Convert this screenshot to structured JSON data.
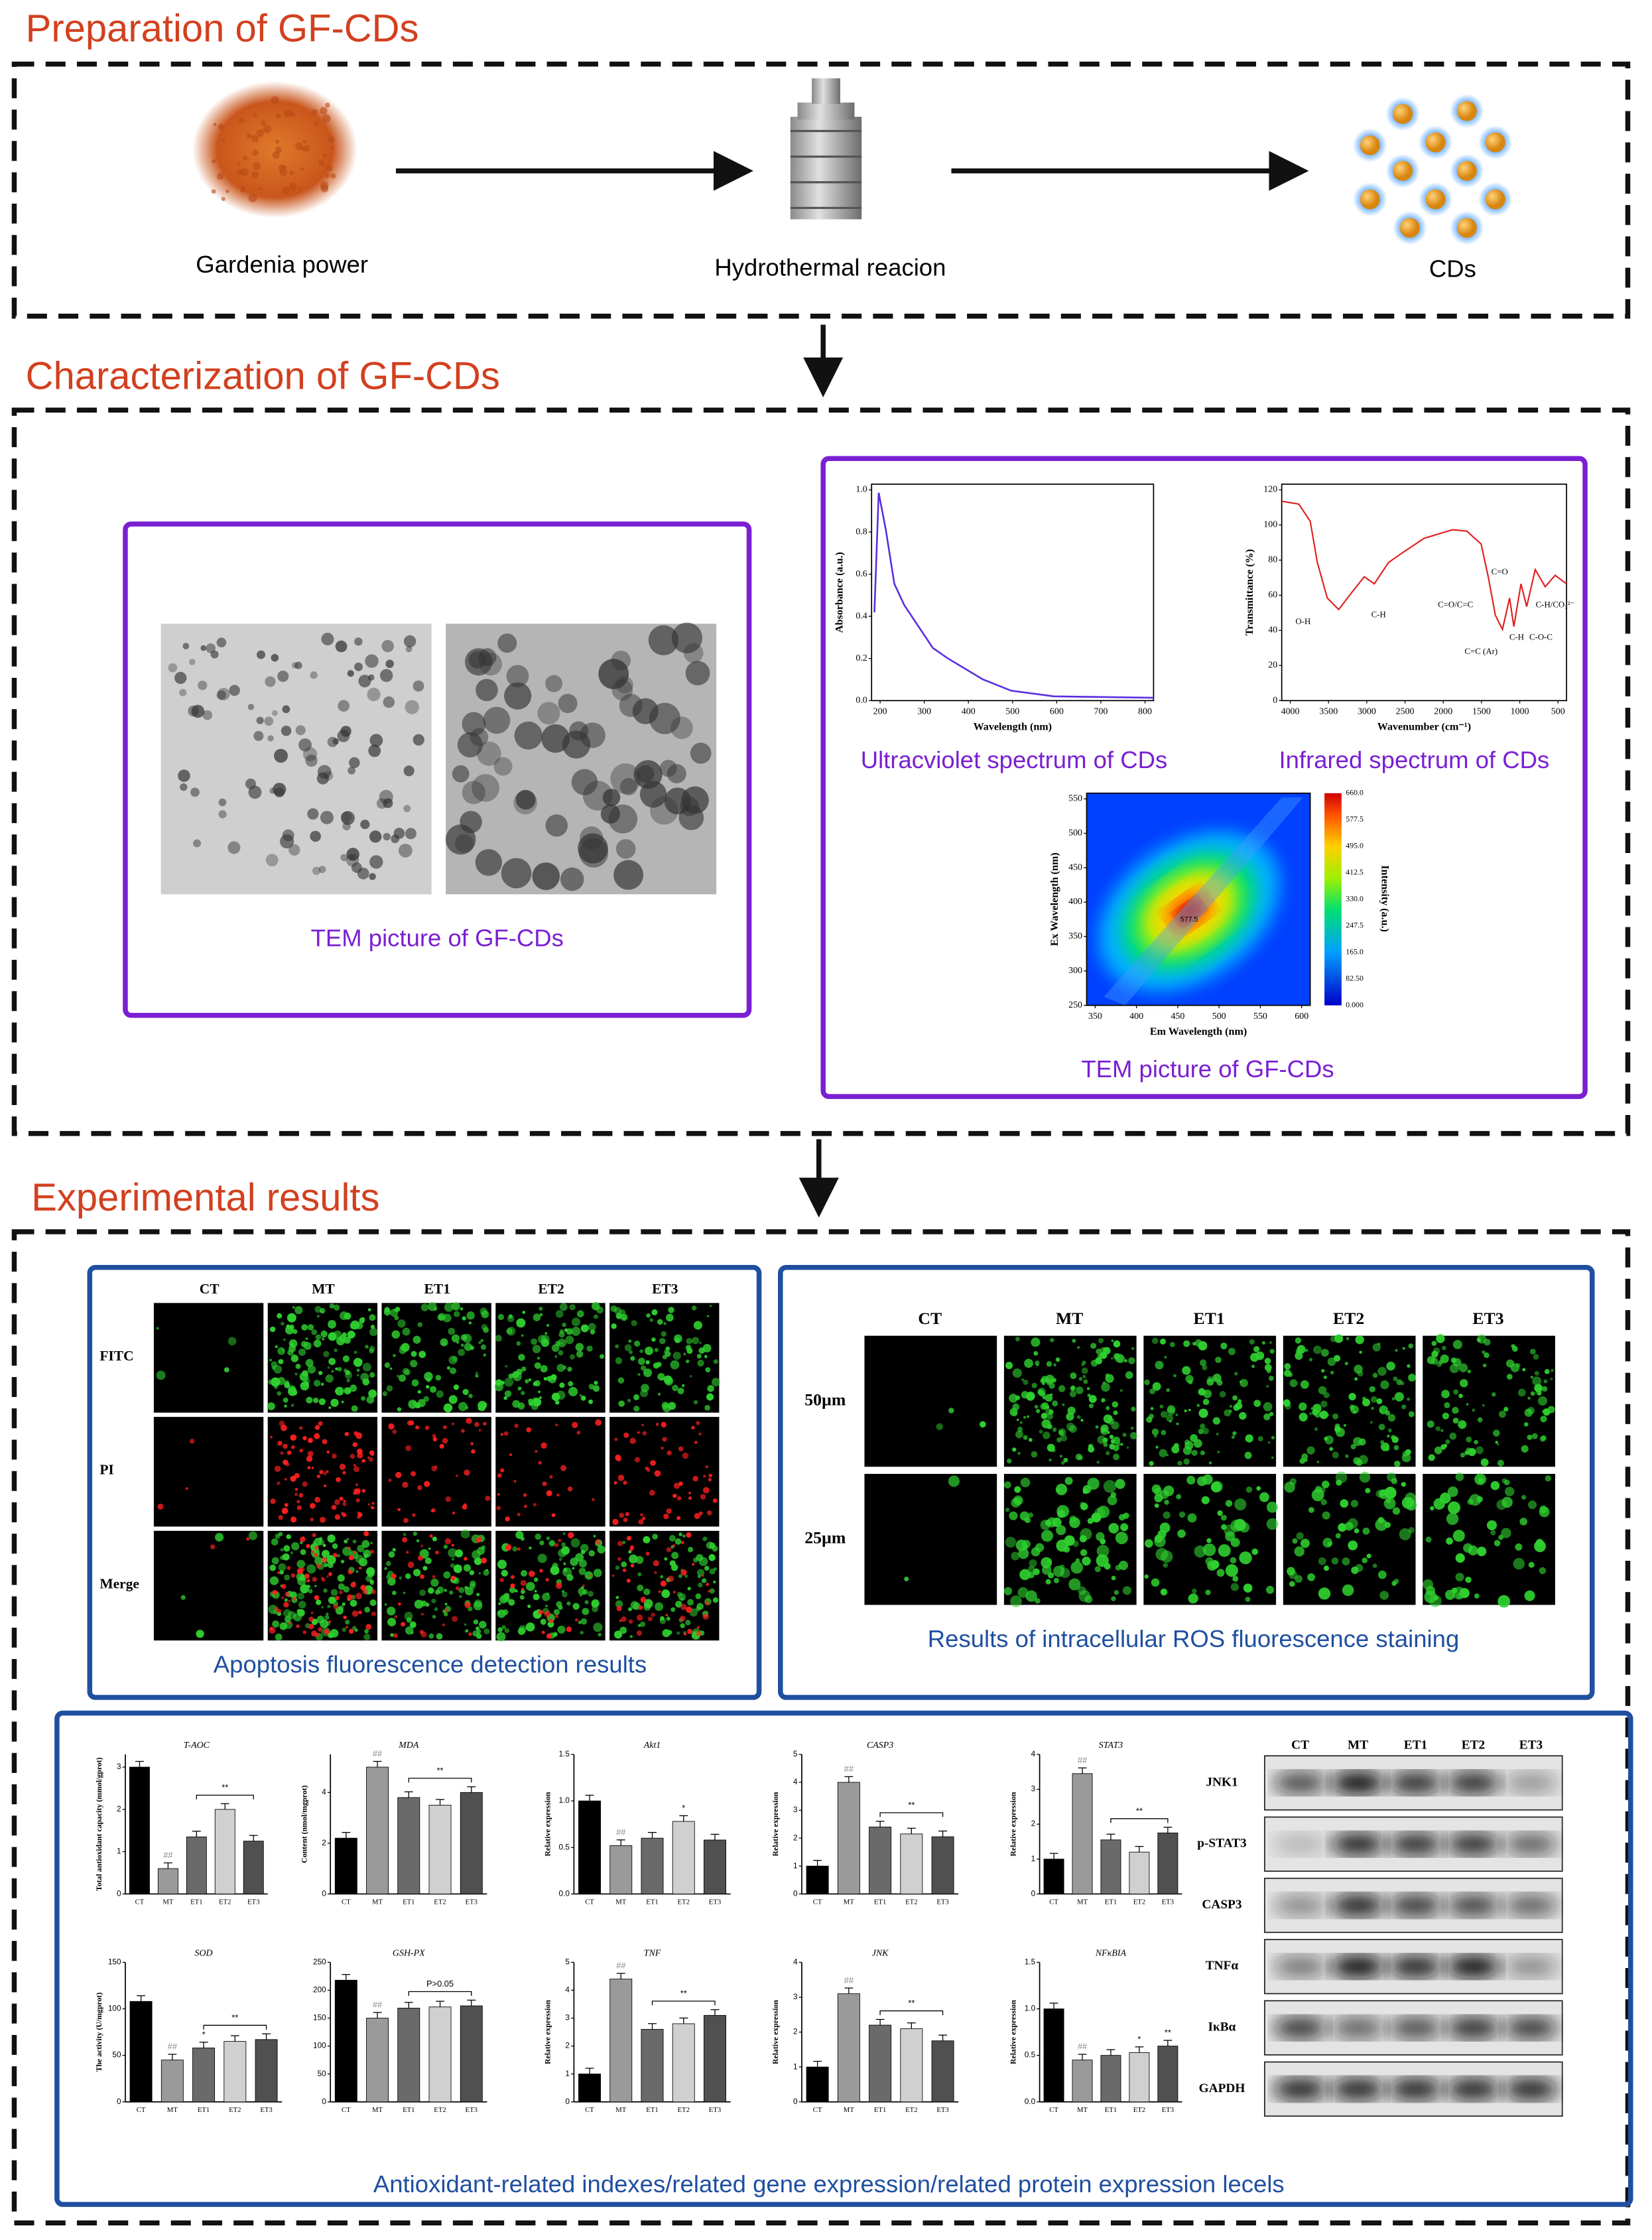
{
  "sections": [
    {
      "title": "Preparation of GF-CDs"
    },
    {
      "title": "Characterization of GF-CDs"
    },
    {
      "title": "Experimental results"
    }
  ],
  "preparation": {
    "steps": [
      "Gardenia power",
      "Hydrothermal reacion",
      "CDs"
    ]
  },
  "characterization": {
    "tem_caption": "TEM picture of GF-CDs",
    "uv": {
      "caption": "Ultracviolet spectrum of CDs",
      "xlabel": "Wavelength (nm)",
      "ylabel": "Absorbance (a.u.)",
      "xticks": [
        200,
        300,
        400,
        500,
        600,
        700,
        800
      ],
      "yticks": [
        "0.0",
        "0.2",
        "0.4",
        "0.6",
        "0.8",
        "1.0"
      ]
    },
    "ir": {
      "caption": "Infrared spectrum of CDs",
      "xlabel": "Wavenumber (cm⁻¹)",
      "ylabel": "Transmittance (%)",
      "xticks": [
        4000,
        3500,
        3000,
        2500,
        2000,
        1500,
        1000,
        500
      ],
      "yticks": [
        0,
        20,
        40,
        60,
        80,
        100,
        120
      ],
      "peaks": [
        "O-H",
        "C-H",
        "C=O/C=C",
        "C=O",
        "C=C (Ar)",
        "C-H",
        "C-H/CO₃²⁻",
        "C-O-C"
      ]
    },
    "fluorescence": {
      "caption": "TEM picture of GF-CDs",
      "xlabel": "Em Wavelength (nm)",
      "ylabel": "Ex Wavelength (nm)",
      "xticks": [
        350,
        400,
        450,
        500,
        550,
        600
      ],
      "yticks": [
        250,
        300,
        350,
        400,
        450,
        500,
        550
      ],
      "colorbar_label": "Intensity (a.u.)",
      "colorbar_ticks": [
        "0.000",
        "82.50",
        "165.0",
        "247.5",
        "330.0",
        "412.5",
        "495.0",
        "577.5",
        "660.0"
      ],
      "peak_label": "577.5"
    }
  },
  "results": {
    "groups": [
      "CT",
      "MT",
      "ET1",
      "ET2",
      "ET3"
    ],
    "apoptosis": {
      "rows": [
        "FITC",
        "PI",
        "Merge"
      ],
      "caption": "Apoptosis fluorescence detection results"
    },
    "ros": {
      "rows": [
        "50µm",
        "25µm"
      ],
      "caption": "Results of intracellular ROS fluorescence staining"
    },
    "panels": [
      {
        "title": "T-AOC",
        "ylabel": "Total antioxidant capacity (mmol/gprot)",
        "values": [
          3.0,
          0.6,
          1.35,
          2.0,
          1.25
        ],
        "ylim": [
          0,
          3.3
        ],
        "yticks": [
          0,
          1,
          2,
          3
        ],
        "marks": [
          null,
          "##",
          null,
          null,
          null
        ],
        "bracket": "**"
      },
      {
        "title": "MDA",
        "ylabel": "Content (nmol/mgprot)",
        "values": [
          2.2,
          5.0,
          3.8,
          3.5,
          4.0
        ],
        "ylim": [
          0,
          5.5
        ],
        "yticks": [
          0,
          2,
          4
        ],
        "marks": [
          null,
          "##",
          null,
          null,
          null
        ],
        "bracket": "**"
      },
      {
        "title": "Akt1",
        "ylabel": "Relative expression",
        "values": [
          1.0,
          0.52,
          0.6,
          0.78,
          0.58
        ],
        "ylim": [
          0,
          1.5
        ],
        "yticks": [
          {
            "value": 0,
            "label": "0.0"
          },
          {
            "value": 0.5,
            "label": "0.5"
          },
          {
            "value": 1,
            "label": "1.0"
          },
          {
            "value": 1.5,
            "label": "1.5"
          }
        ],
        "marks": [
          null,
          "##",
          null,
          "*",
          null
        ]
      },
      {
        "title": "CASP3",
        "ylabel": "Relative expression",
        "values": [
          1.0,
          4.0,
          2.4,
          2.15,
          2.05
        ],
        "ylim": [
          0,
          5
        ],
        "yticks": [
          0,
          1,
          2,
          3,
          4,
          5
        ],
        "marks": [
          null,
          "##",
          null,
          null,
          null
        ],
        "bracket": "**"
      },
      {
        "title": "STAT3",
        "ylabel": "Relative expression",
        "values": [
          1.0,
          3.45,
          1.55,
          1.2,
          1.75
        ],
        "ylim": [
          0,
          4
        ],
        "yticks": [
          0,
          1,
          2,
          3,
          4
        ],
        "marks": [
          null,
          "##",
          null,
          null,
          null
        ],
        "bracket": "**"
      },
      {
        "title": "SOD",
        "ylabel": "The activity (U/mgprot)",
        "values": [
          108,
          45,
          58,
          65,
          67
        ],
        "ylim": [
          0,
          150
        ],
        "yticks": [
          0,
          50,
          100,
          150
        ],
        "marks": [
          null,
          "##",
          "*",
          null,
          null
        ],
        "bracket": "**"
      },
      {
        "title": "GSH-PX",
        "values": [
          218,
          150,
          168,
          170,
          172
        ],
        "ylim": [
          0,
          250
        ],
        "yticks": [
          0,
          50,
          100,
          150,
          200,
          250
        ],
        "marks": [
          null,
          "##",
          null,
          null,
          null
        ],
        "bracket": "P>0.05"
      },
      {
        "title": "TNF",
        "ylabel": "Relative expression",
        "values": [
          1.0,
          4.4,
          2.6,
          2.8,
          3.1
        ],
        "ylim": [
          0,
          5
        ],
        "yticks": [
          0,
          1,
          2,
          3,
          4,
          5
        ],
        "marks": [
          null,
          "##",
          null,
          null,
          null
        ],
        "bracket": "**"
      },
      {
        "title": "JNK",
        "ylabel": "Relative expression",
        "values": [
          1.0,
          3.1,
          2.2,
          2.1,
          1.75
        ],
        "ylim": [
          0,
          4
        ],
        "yticks": [
          0,
          1,
          2,
          3,
          4
        ],
        "marks": [
          null,
          "##",
          null,
          null,
          null
        ],
        "bracket": "**"
      },
      {
        "title": "NFκBIA",
        "ylabel": "Relative expression",
        "values": [
          1.0,
          0.45,
          0.5,
          0.53,
          0.6
        ],
        "ylim": [
          0,
          1.5
        ],
        "yticks": [
          {
            "value": 0,
            "label": "0.0"
          },
          {
            "value": 0.5,
            "label": "0.5"
          },
          {
            "value": 1,
            "label": "1.0"
          },
          {
            "value": 1.5,
            "label": "1.5"
          }
        ],
        "marks": [
          null,
          "##",
          null,
          "*",
          "**"
        ]
      }
    ],
    "blot": {
      "proteins": [
        "JNK1",
        "p-STAT3",
        "CASP3",
        "TNFα",
        "IκBα",
        "GAPDH"
      ]
    },
    "caption": "Antioxidant-related indexes/related gene expression/related protein expression lecels"
  }
}
